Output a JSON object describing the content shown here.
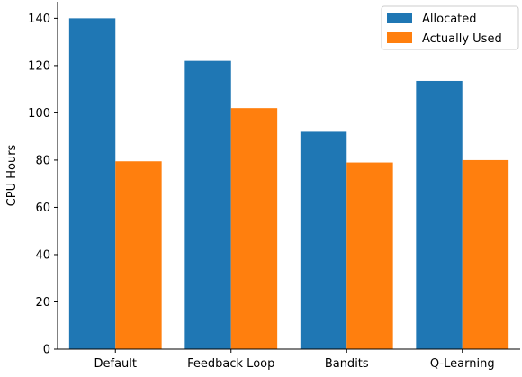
{
  "chart_data": {
    "type": "bar",
    "title": "",
    "xlabel": "",
    "ylabel": "CPU Hours",
    "categories": [
      "Default",
      "Feedback Loop",
      "Bandits",
      "Q-Learning"
    ],
    "series": [
      {
        "name": "Allocated",
        "values": [
          140,
          122,
          92,
          113.5
        ],
        "color": "#1f77b4"
      },
      {
        "name": "Actually Used",
        "values": [
          79.5,
          102,
          79,
          80
        ],
        "color": "#ff7f0e"
      }
    ],
    "ylim": [
      0,
      147
    ],
    "yticks": [
      0,
      20,
      40,
      60,
      80,
      100,
      120,
      140
    ],
    "grid": false,
    "legend_position": "top-right"
  }
}
